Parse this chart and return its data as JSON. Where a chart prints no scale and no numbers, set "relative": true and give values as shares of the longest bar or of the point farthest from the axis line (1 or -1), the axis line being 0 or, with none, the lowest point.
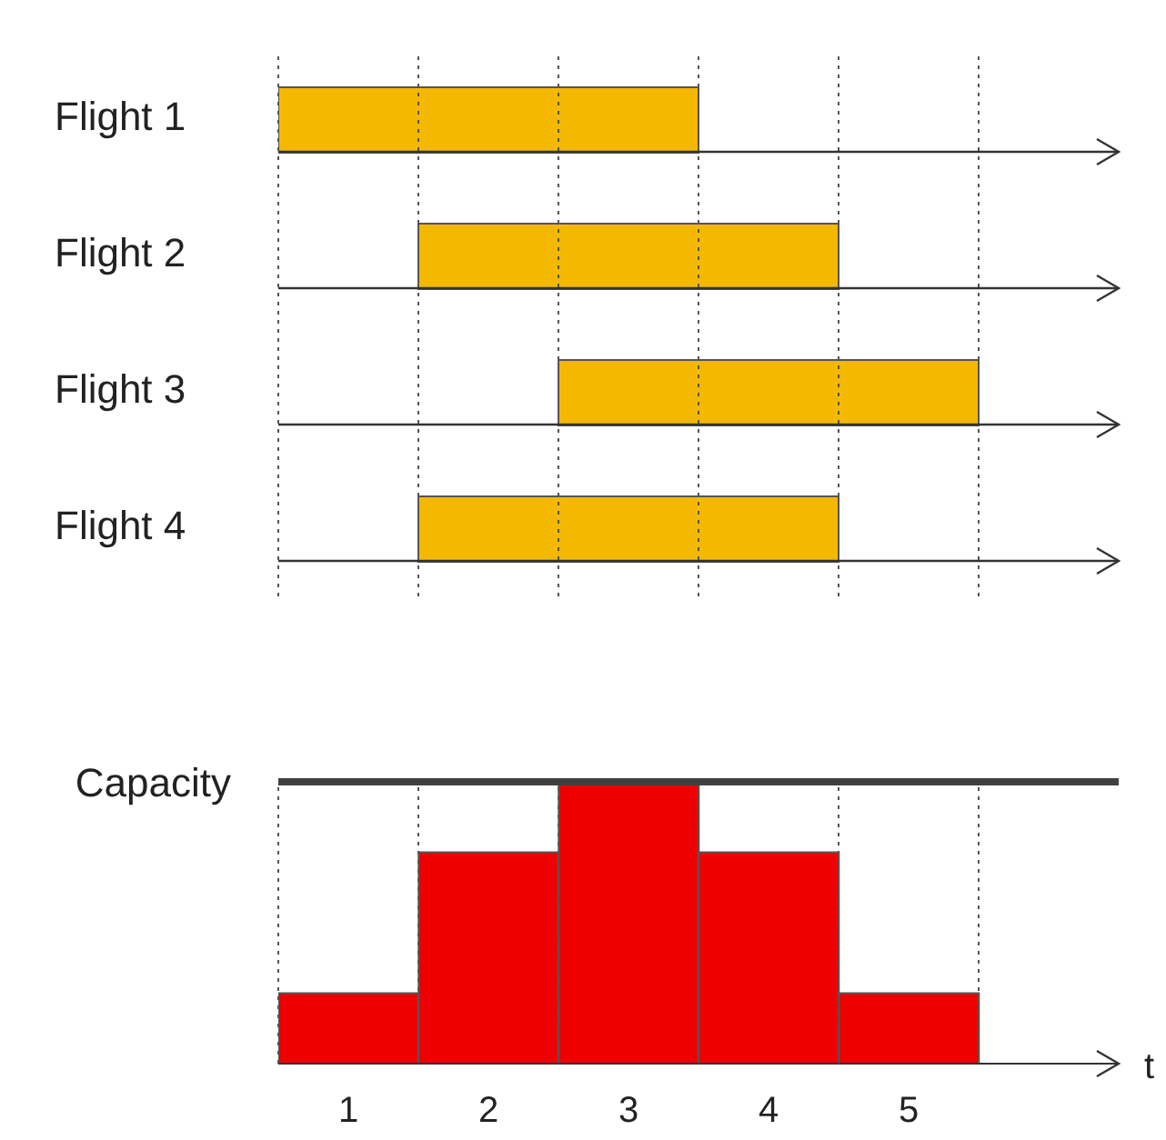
{
  "chart_data": [
    {
      "type": "bar",
      "orientation": "horizontal",
      "categories": [
        "Flight 1",
        "Flight 2",
        "Flight 3",
        "Flight 4"
      ],
      "base": [
        0.5,
        1.5,
        2.5,
        1.5
      ],
      "values": [
        3,
        3,
        3,
        3
      ],
      "color": "#f5b800",
      "xlim": [
        0.5,
        6.5
      ],
      "tick_labels": "y",
      "ref_lines": [
        {
          "axis": "x",
          "value": 0.5,
          "color": "#555555",
          "line_style": "dotted"
        },
        {
          "axis": "x",
          "value": 1.5,
          "color": "#555555",
          "line_style": "dotted"
        },
        {
          "axis": "x",
          "value": 2.5,
          "color": "#555555",
          "line_style": "dotted"
        },
        {
          "axis": "x",
          "value": 3.5,
          "color": "#555555",
          "line_style": "dotted"
        },
        {
          "axis": "x",
          "value": 4.5,
          "color": "#555555",
          "line_style": "dotted"
        },
        {
          "axis": "x",
          "value": 5.5,
          "color": "#555555",
          "line_style": "dotted"
        }
      ]
    },
    {
      "type": "bar",
      "x": [
        1,
        2,
        3,
        4,
        5
      ],
      "values": [
        0.25,
        0.75,
        1,
        0.75,
        0.25
      ],
      "relative": true,
      "color": "#ee0000",
      "xlim": [
        0.5,
        6.5
      ],
      "xticks": [
        1,
        2,
        3,
        4,
        5
      ],
      "xlabel": "t",
      "tick_labels": "x",
      "ref_lines": [
        {
          "axis": "y",
          "value": 1,
          "label": "Capacity",
          "color": "#404040"
        },
        {
          "axis": "x",
          "value": 0.5,
          "color": "#555555",
          "line_style": "dotted"
        },
        {
          "axis": "x",
          "value": 1.5,
          "color": "#555555",
          "line_style": "dotted"
        },
        {
          "axis": "x",
          "value": 2.5,
          "color": "#555555",
          "line_style": "dotted"
        },
        {
          "axis": "x",
          "value": 3.5,
          "color": "#555555",
          "line_style": "dotted"
        },
        {
          "axis": "x",
          "value": 4.5,
          "color": "#555555",
          "line_style": "dotted"
        },
        {
          "axis": "x",
          "value": 5.5,
          "color": "#555555",
          "line_style": "dotted"
        }
      ]
    }
  ]
}
